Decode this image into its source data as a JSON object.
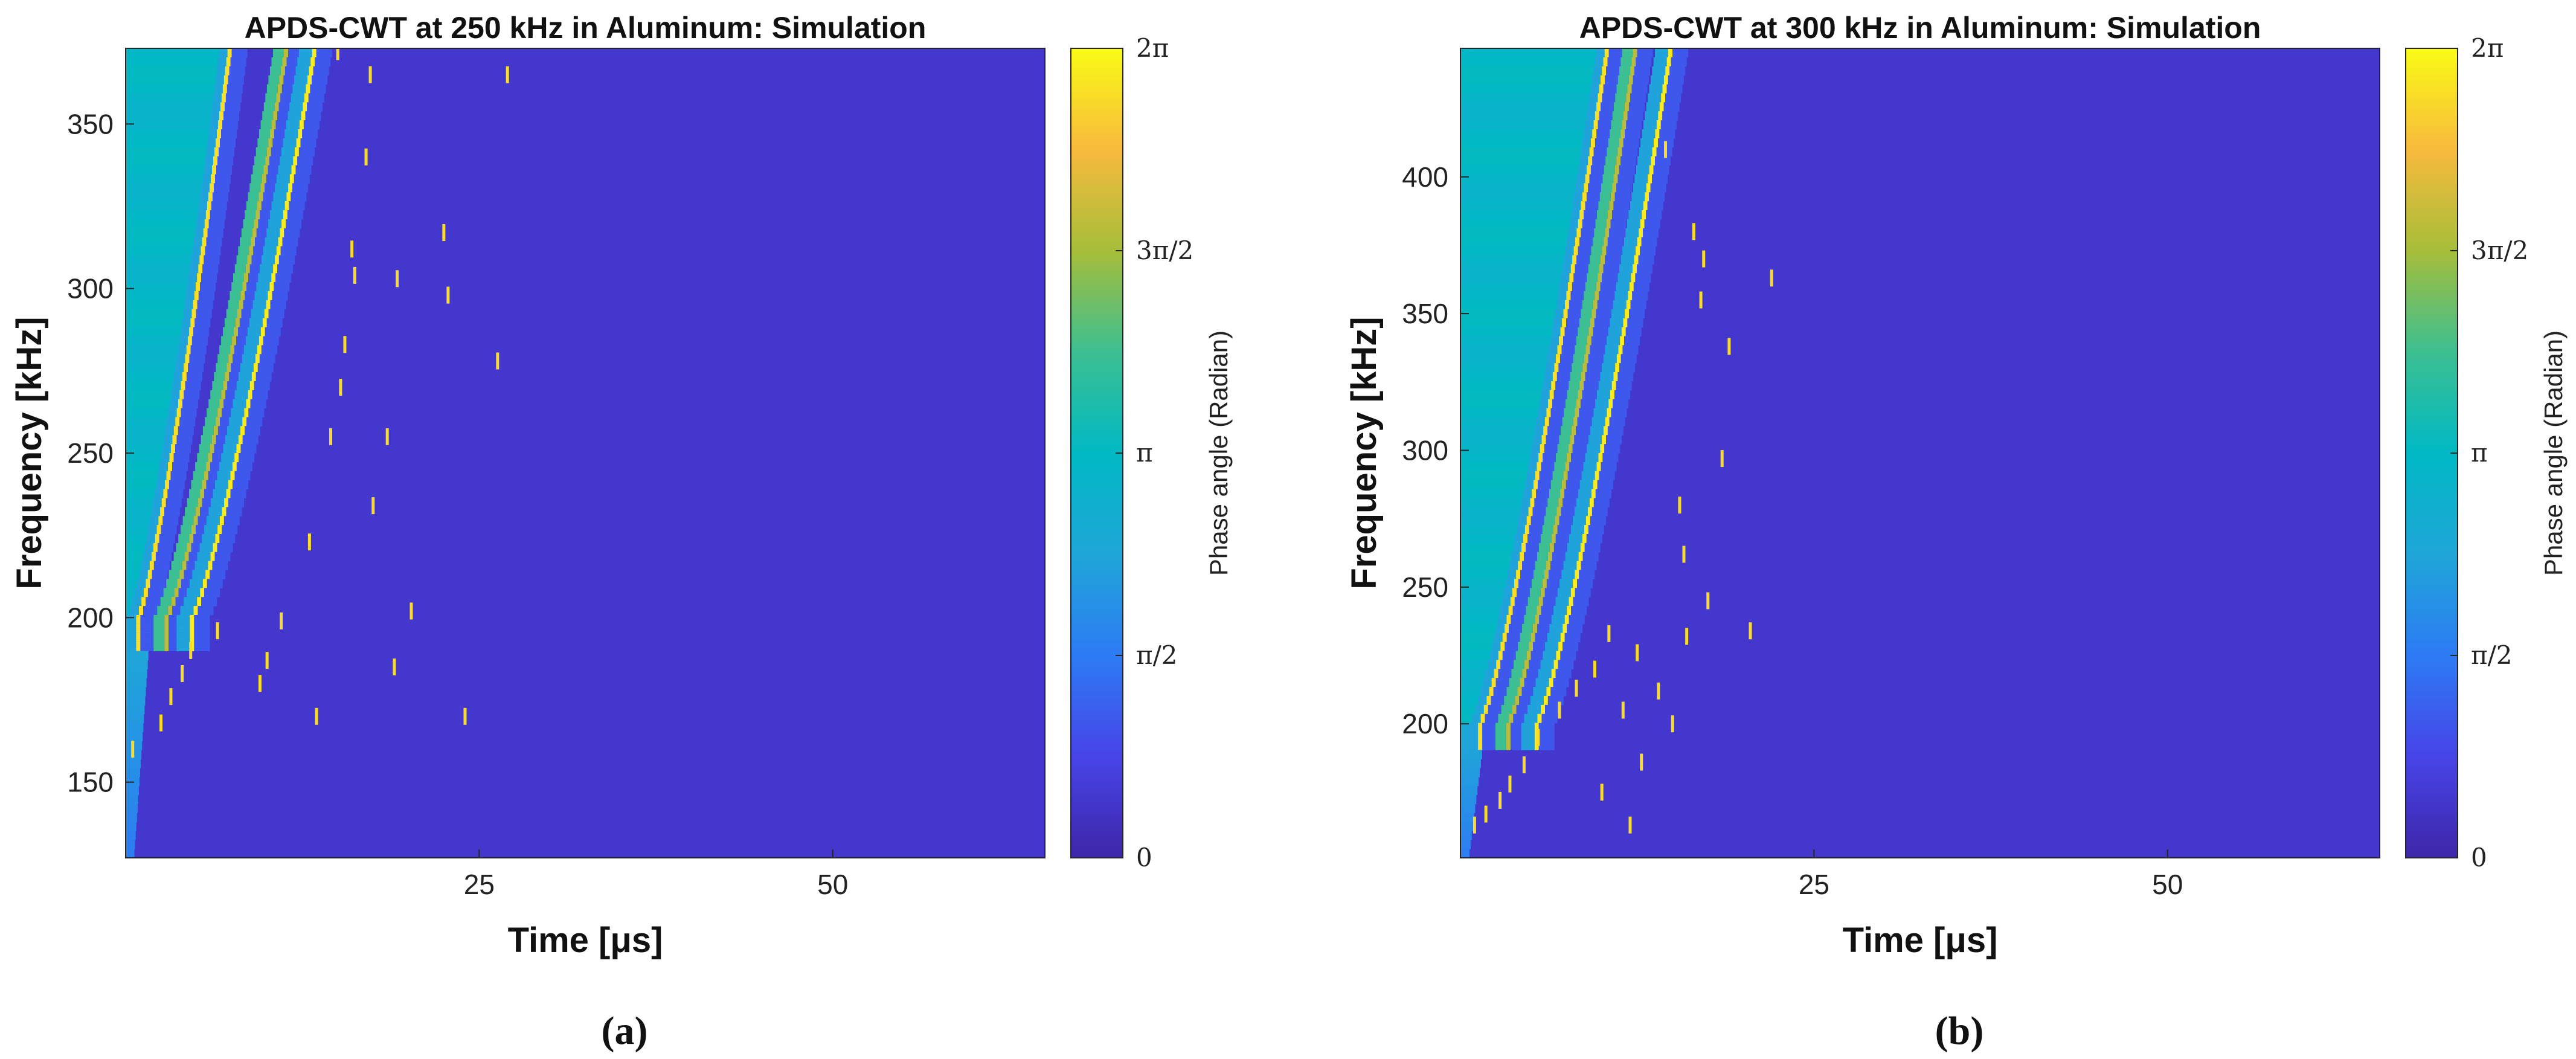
{
  "chart_data": [
    {
      "type": "heatmap",
      "panel_id": "a",
      "title": "APDS-CWT at 250 kHz in Aluminum: Simulation",
      "xlabel": "Time [μs]",
      "ylabel": "Frequency [kHz]",
      "xlim": [
        0,
        65
      ],
      "ylim": [
        127,
        373
      ],
      "xticks": [
        25,
        50
      ],
      "yticks": [
        150,
        200,
        250,
        300,
        350
      ],
      "caption": "(a)",
      "colorbar": {
        "label": "Phase angle (Radian)",
        "range": [
          0,
          6.2832
        ],
        "ticks": [
          {
            "value": 0,
            "label": "0"
          },
          {
            "value": 1.5708,
            "label": "π/2"
          },
          {
            "value": 3.1416,
            "label": "π"
          },
          {
            "value": 4.7124,
            "label": "3π/2"
          },
          {
            "value": 6.2832,
            "label": "2π"
          }
        ],
        "colormap": "parula"
      },
      "background_phase": 0.45,
      "wavefronts": [
        {
          "t0": 1.0,
          "f0": 200,
          "t1": 7.5,
          "f1": 373,
          "core": 5.95
        },
        {
          "t0": 3.0,
          "f0": 200,
          "t1": 11.5,
          "f1": 373,
          "core": 4.9
        },
        {
          "t0": 4.8,
          "f0": 200,
          "t1": 13.5,
          "f1": 373,
          "core": 6.1
        }
      ],
      "left_region_phase": 3.05,
      "scatter_points": [
        {
          "t": 0.5,
          "f": 160
        },
        {
          "t": 2.5,
          "f": 168
        },
        {
          "t": 3.2,
          "f": 176
        },
        {
          "t": 4.0,
          "f": 183
        },
        {
          "t": 4.6,
          "f": 190
        },
        {
          "t": 6.5,
          "f": 196
        },
        {
          "t": 9.5,
          "f": 180
        },
        {
          "t": 10.0,
          "f": 187
        },
        {
          "t": 11.0,
          "f": 199
        },
        {
          "t": 13.5,
          "f": 170
        },
        {
          "t": 13.0,
          "f": 223
        },
        {
          "t": 14.5,
          "f": 255
        },
        {
          "t": 15.5,
          "f": 283
        },
        {
          "t": 15.2,
          "f": 270
        },
        {
          "t": 16.0,
          "f": 312
        },
        {
          "t": 16.2,
          "f": 304
        },
        {
          "t": 17.5,
          "f": 234
        },
        {
          "t": 18.5,
          "f": 255
        },
        {
          "t": 19.2,
          "f": 303
        },
        {
          "t": 19.0,
          "f": 185
        },
        {
          "t": 20.2,
          "f": 202
        },
        {
          "t": 22.5,
          "f": 317
        },
        {
          "t": 22.8,
          "f": 298
        },
        {
          "t": 24.0,
          "f": 170
        },
        {
          "t": 26.3,
          "f": 278
        },
        {
          "t": 17.0,
          "f": 340
        },
        {
          "t": 17.3,
          "f": 365
        },
        {
          "t": 27.0,
          "f": 365
        },
        {
          "t": 15.0,
          "f": 372
        }
      ]
    },
    {
      "type": "heatmap",
      "panel_id": "b",
      "title": "APDS-CWT at 300 kHz in Aluminum: Simulation",
      "xlabel": "Time [μs]",
      "ylabel": "Frequency [kHz]",
      "xlim": [
        0,
        65
      ],
      "ylim": [
        151,
        447
      ],
      "xticks": [
        25,
        50
      ],
      "yticks": [
        200,
        250,
        300,
        350,
        400
      ],
      "caption": "(b)",
      "colorbar": {
        "label": "Phase angle (Radian)",
        "range": [
          0,
          6.2832
        ],
        "ticks": [
          {
            "value": 0,
            "label": "0"
          },
          {
            "value": 1.5708,
            "label": "π/2"
          },
          {
            "value": 3.1416,
            "label": "π"
          },
          {
            "value": 4.7124,
            "label": "3π/2"
          },
          {
            "value": 6.2832,
            "label": "2π"
          }
        ],
        "colormap": "parula"
      },
      "background_phase": 0.45,
      "wavefronts": [
        {
          "t0": 1.5,
          "f0": 200,
          "t1": 10.5,
          "f1": 447,
          "core": 5.95
        },
        {
          "t0": 3.5,
          "f0": 200,
          "t1": 12.5,
          "f1": 447,
          "core": 4.9
        },
        {
          "t0": 5.5,
          "f0": 200,
          "t1": 15.0,
          "f1": 447,
          "core": 6.1
        }
      ],
      "left_region_phase": 3.05,
      "scatter_points": [
        {
          "t": 1.0,
          "f": 163
        },
        {
          "t": 1.8,
          "f": 167
        },
        {
          "t": 2.8,
          "f": 172
        },
        {
          "t": 3.5,
          "f": 178
        },
        {
          "t": 4.5,
          "f": 185
        },
        {
          "t": 5.5,
          "f": 195
        },
        {
          "t": 7.0,
          "f": 205
        },
        {
          "t": 8.2,
          "f": 213
        },
        {
          "t": 9.5,
          "f": 220
        },
        {
          "t": 10.5,
          "f": 233
        },
        {
          "t": 11.5,
          "f": 205
        },
        {
          "t": 12.5,
          "f": 226
        },
        {
          "t": 10.0,
          "f": 175
        },
        {
          "t": 12.0,
          "f": 163
        },
        {
          "t": 12.8,
          "f": 186
        },
        {
          "t": 14.0,
          "f": 212
        },
        {
          "t": 15.0,
          "f": 200
        },
        {
          "t": 15.5,
          "f": 280
        },
        {
          "t": 15.8,
          "f": 262
        },
        {
          "t": 16.0,
          "f": 232
        },
        {
          "t": 16.5,
          "f": 380
        },
        {
          "t": 17.0,
          "f": 355
        },
        {
          "t": 17.2,
          "f": 370
        },
        {
          "t": 17.5,
          "f": 245
        },
        {
          "t": 18.5,
          "f": 297
        },
        {
          "t": 19.0,
          "f": 338
        },
        {
          "t": 20.5,
          "f": 234
        },
        {
          "t": 22.0,
          "f": 363
        },
        {
          "t": 14.5,
          "f": 410
        }
      ]
    }
  ]
}
